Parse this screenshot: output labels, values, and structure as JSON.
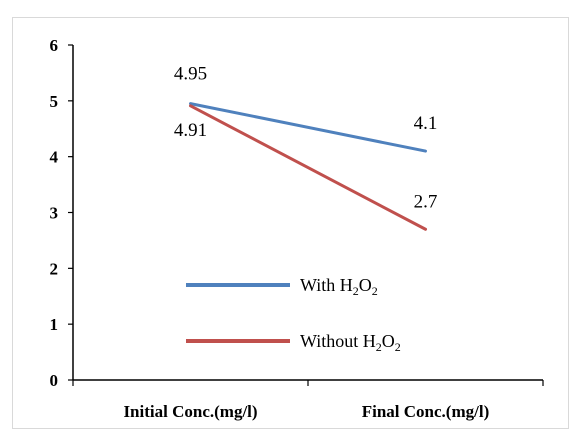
{
  "chart_data": {
    "type": "line",
    "title": "",
    "xlabel": "",
    "ylabel": "",
    "categories": [
      "Initial Conc.(mg/l)",
      "Final Conc.(mg/l)"
    ],
    "ylim": [
      0,
      6
    ],
    "yticks": [
      "0",
      "1",
      "2",
      "3",
      "4",
      "5",
      "6"
    ],
    "grid": false,
    "legend_position": "center",
    "series": [
      {
        "name": "With H2O2",
        "values": [
          4.95,
          4.1
        ],
        "data_labels": [
          "4.95",
          "4.1"
        ],
        "color": "#4f81bd",
        "legend": {
          "text": "With H",
          "sub1": "2",
          "mid": "O",
          "sub2": "2"
        }
      },
      {
        "name": "Without H2O2",
        "values": [
          4.91,
          2.7
        ],
        "data_labels": [
          "4.91",
          "2.7"
        ],
        "color": "#c0504d",
        "legend": {
          "text": "Without H",
          "sub1": "2",
          "mid": "O",
          "sub2": "2"
        }
      }
    ]
  }
}
